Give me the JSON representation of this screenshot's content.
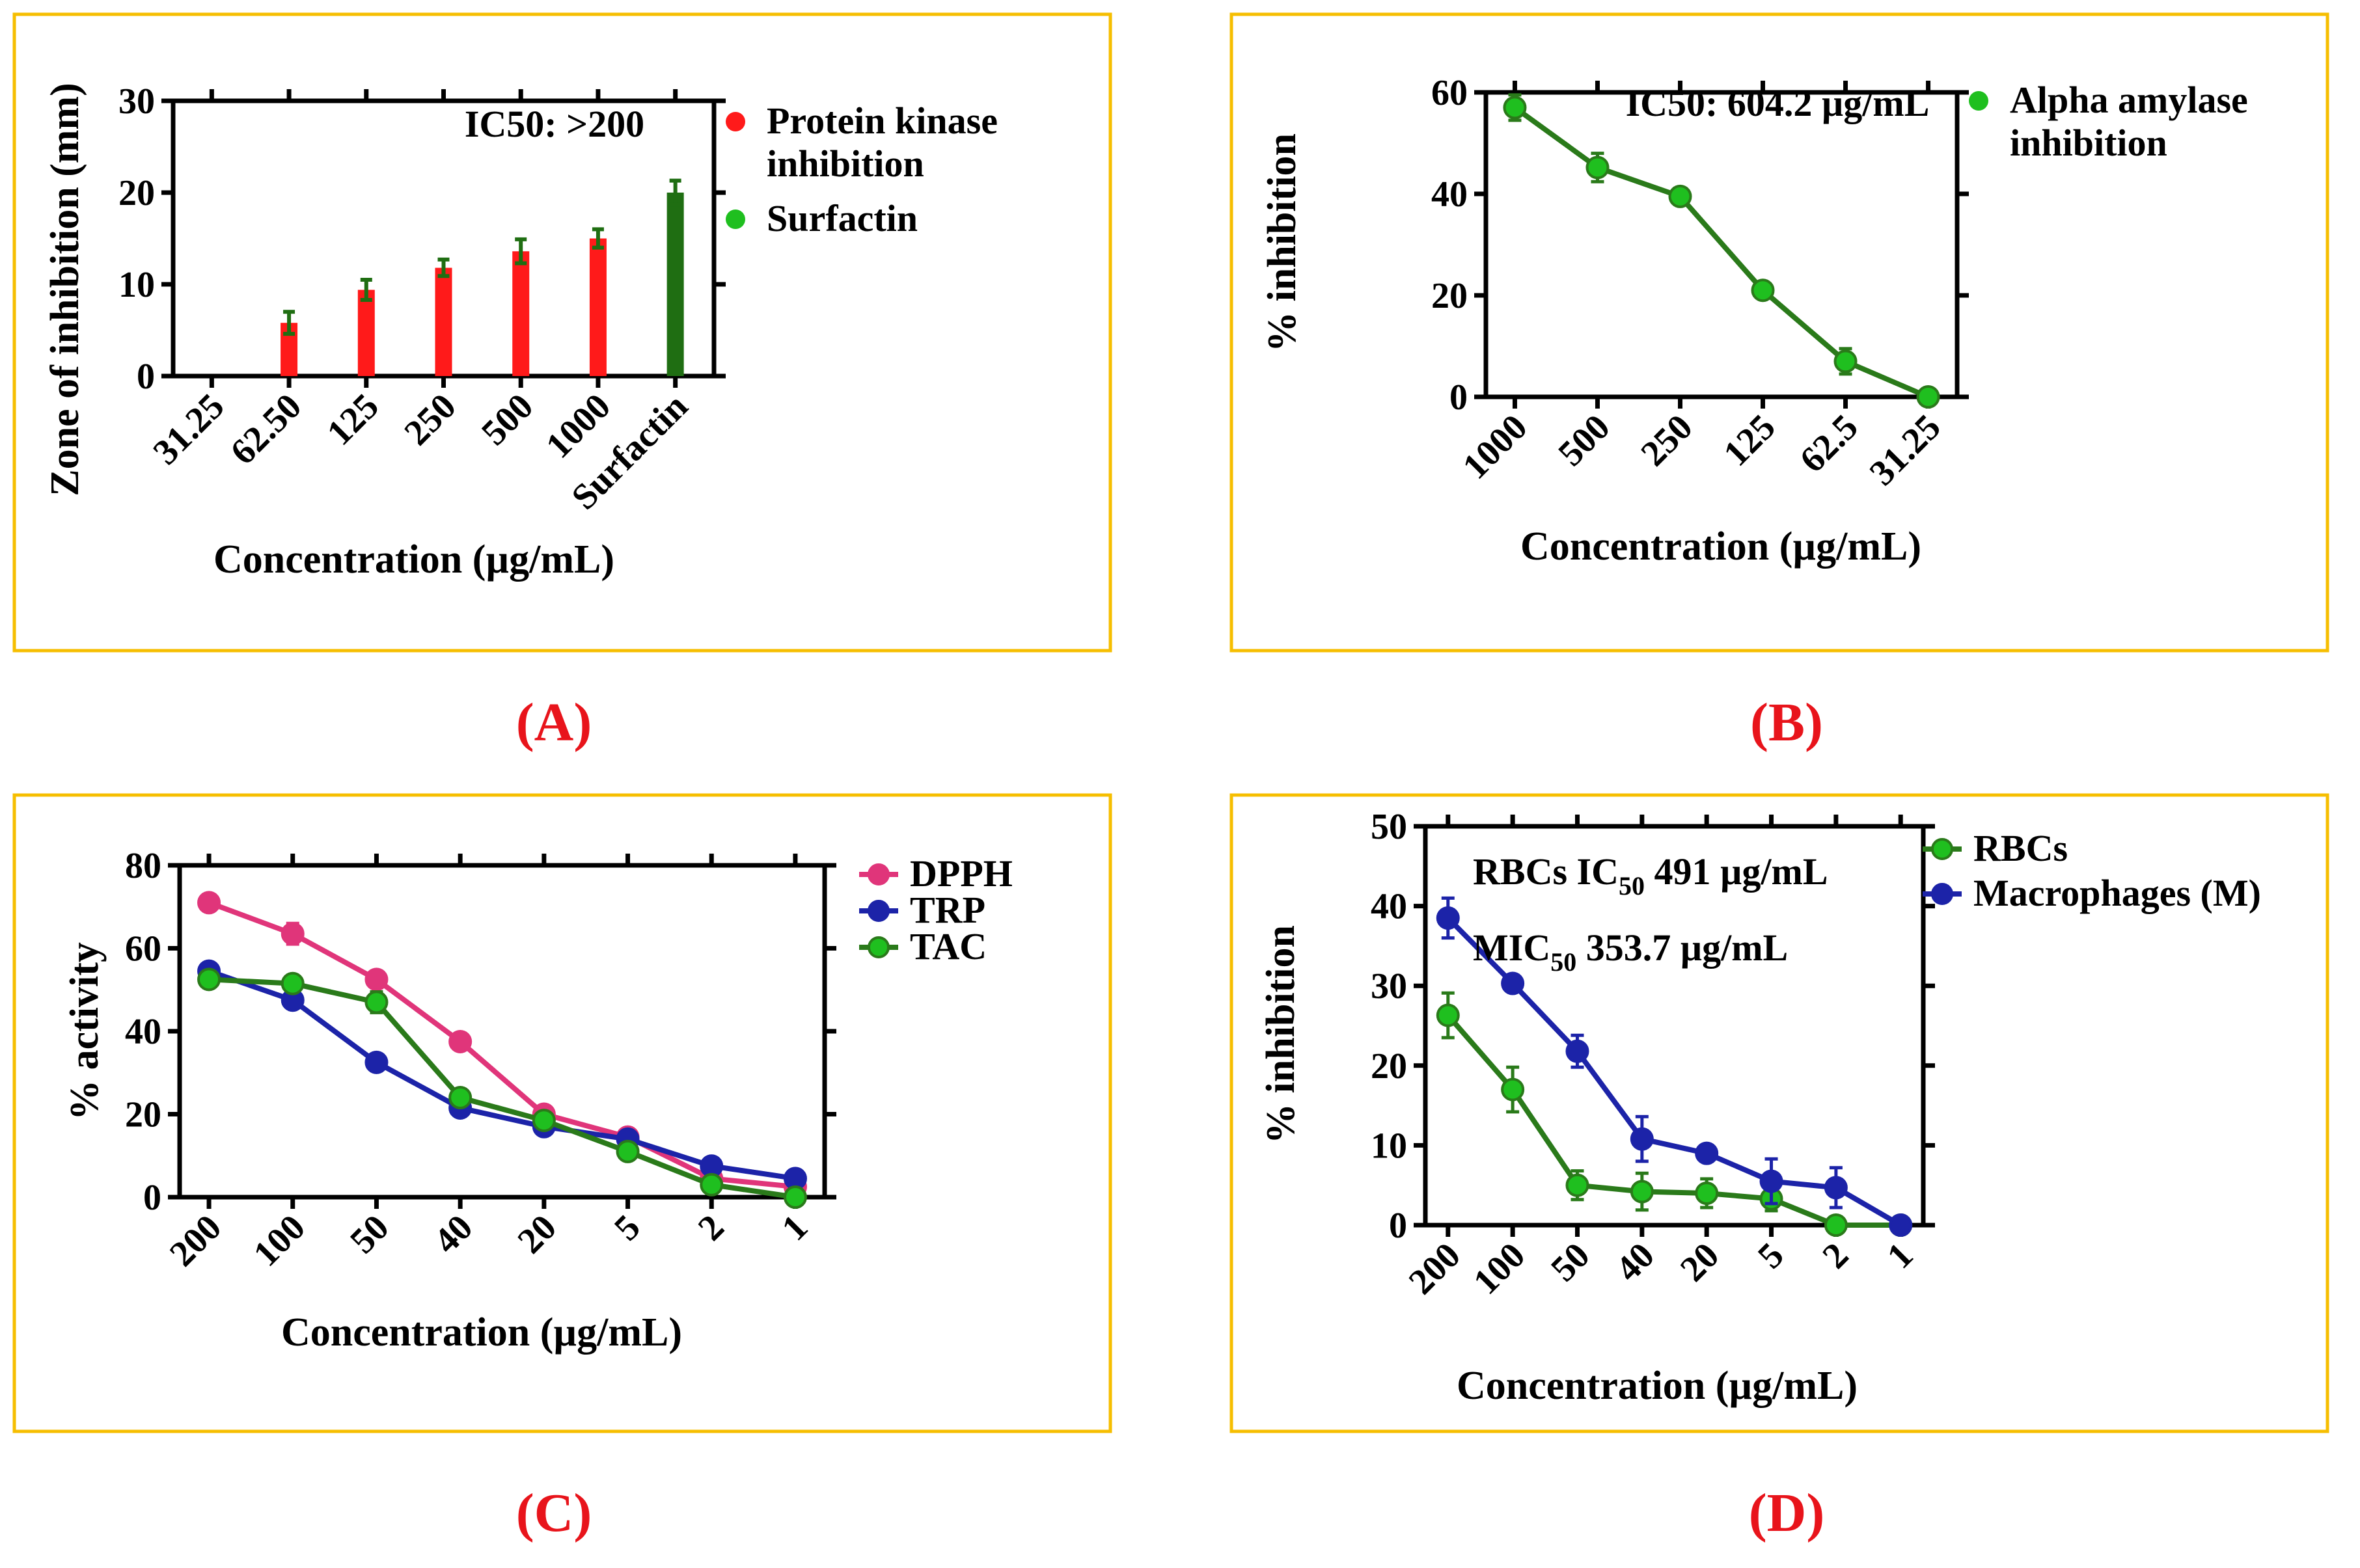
{
  "colors": {
    "frame": "#f6be00",
    "red": "#ff1a1a",
    "darkgreen": "#1f6e12",
    "green_fill": "#1fbf1f",
    "green_line": "#2a7a1a",
    "pink": "#e0357a",
    "navy": "#1c23a8",
    "panel_label": "#e8141b"
  },
  "chart_data": [
    {
      "id": "A",
      "panel_label": "(A)",
      "type": "bar",
      "title": "",
      "xlabel": "Concentration (µg/mL)",
      "ylabel": "Zone of inhibition (mm)",
      "ylim": [
        0,
        30
      ],
      "yticks": [
        "0",
        "10",
        "20",
        "30"
      ],
      "categories": [
        "31.25",
        "62.50",
        "125",
        "250",
        "500",
        "1000",
        "Surfactin"
      ],
      "values": [
        0,
        5.8,
        9.4,
        11.8,
        13.6,
        15.0,
        20.0
      ],
      "errors": [
        0,
        1.2,
        1.1,
        0.9,
        1.3,
        1.0,
        1.3
      ],
      "bar_colors": [
        "red",
        "red",
        "red",
        "red",
        "red",
        "red",
        "darkgreen"
      ],
      "annotation": "IC50: >200",
      "legend": [
        {
          "label_lines": [
            "Protein kinase",
            "inhibition"
          ],
          "color": "red"
        },
        {
          "label_lines": [
            "Surfactin"
          ],
          "color": "green_fill"
        }
      ]
    },
    {
      "id": "B",
      "panel_label": "(B)",
      "type": "line",
      "title": "",
      "xlabel": "Concentration (µg/mL)",
      "ylabel": "% inhibition",
      "ylim": [
        0,
        60
      ],
      "yticks": [
        "0",
        "20",
        "40",
        "60"
      ],
      "categories": [
        "1000",
        "500",
        "250",
        "125",
        "62.5",
        "31.25"
      ],
      "series": [
        {
          "name": "Alpha amylase inhibition",
          "values": [
            57,
            45.2,
            39.5,
            21,
            7,
            0
          ],
          "errors": [
            2.5,
            2.8,
            1.0,
            1.5,
            2.5,
            0.5
          ],
          "line": "green_line",
          "marker": "green_fill"
        }
      ],
      "annotation": "IC50: 604.2 µg/mL",
      "legend": [
        {
          "label_lines": [
            "Alpha amylase",
            "inhibition"
          ],
          "color": "green_fill"
        }
      ]
    },
    {
      "id": "C",
      "panel_label": "(C)",
      "type": "line",
      "title": "",
      "xlabel": "Concentration (µg/mL)",
      "ylabel": "% activity",
      "ylim": [
        0,
        80
      ],
      "yticks": [
        "0",
        "20",
        "40",
        "60",
        "80"
      ],
      "categories": [
        "200",
        "100",
        "50",
        "40",
        "20",
        "5",
        "2",
        "1"
      ],
      "series": [
        {
          "name": "DPPH",
          "values": [
            71,
            63.5,
            52.5,
            37.5,
            20,
            14.5,
            4.5,
            2.5
          ],
          "errors": [
            1.5,
            2.5,
            1.5,
            1.5,
            1.5,
            1.5,
            1,
            1
          ],
          "line": "pink",
          "marker": "pink"
        },
        {
          "name": "TRP",
          "values": [
            54.5,
            47.5,
            32.5,
            21.5,
            17,
            14,
            7.5,
            4.5
          ],
          "errors": [
            1.5,
            1.5,
            1,
            1.5,
            1,
            1,
            1,
            2
          ],
          "line": "navy",
          "marker": "navy"
        },
        {
          "name": "TAC",
          "values": [
            52.5,
            51.5,
            47,
            24,
            18.5,
            11,
            3,
            0
          ],
          "errors": [
            1.5,
            1,
            2.5,
            1.5,
            1,
            1,
            1,
            0.5
          ],
          "line": "green_line",
          "marker": "green_fill"
        }
      ],
      "annotation": "",
      "legend": [
        {
          "label_lines": [
            "DPPH"
          ],
          "color": "pink"
        },
        {
          "label_lines": [
            "TRP"
          ],
          "color": "navy"
        },
        {
          "label_lines": [
            "TAC"
          ],
          "color": "green_fill"
        }
      ]
    },
    {
      "id": "D",
      "panel_label": "(D)",
      "type": "line",
      "title": "",
      "xlabel": "Concentration (µg/mL)",
      "ylabel": "% inhibition",
      "ylim": [
        0,
        50
      ],
      "yticks": [
        "0",
        "10",
        "20",
        "30",
        "40",
        "50"
      ],
      "categories": [
        "200",
        "100",
        "50",
        "40",
        "20",
        "5",
        "2",
        "1"
      ],
      "series": [
        {
          "name": "RBCs",
          "values": [
            26.3,
            17,
            5,
            4.2,
            4,
            3.3,
            0,
            0
          ],
          "errors": [
            2.8,
            2.8,
            1.8,
            2.3,
            1.8,
            1.5,
            0.5,
            0.5
          ],
          "line": "green_line",
          "marker": "green_fill"
        },
        {
          "name": "Macrophages (M)",
          "values": [
            38.5,
            30.3,
            21.8,
            10.8,
            9,
            5.5,
            4.7,
            0
          ],
          "errors": [
            2.5,
            1,
            2,
            2.8,
            1,
            2.8,
            2.5,
            0.5
          ],
          "line": "navy",
          "marker": "navy"
        }
      ],
      "annotation_lines": [
        {
          "pre": "RBCs IC",
          "sub": "50",
          "post": " 491 µg/mL"
        },
        {
          "pre": "MIC",
          "sub": "50",
          "post": "  353.7 µg/mL"
        }
      ],
      "legend": [
        {
          "label_lines": [
            "RBCs"
          ],
          "color": "green_fill"
        },
        {
          "label_lines": [
            "Macrophages (M)"
          ],
          "color": "navy"
        }
      ]
    }
  ]
}
